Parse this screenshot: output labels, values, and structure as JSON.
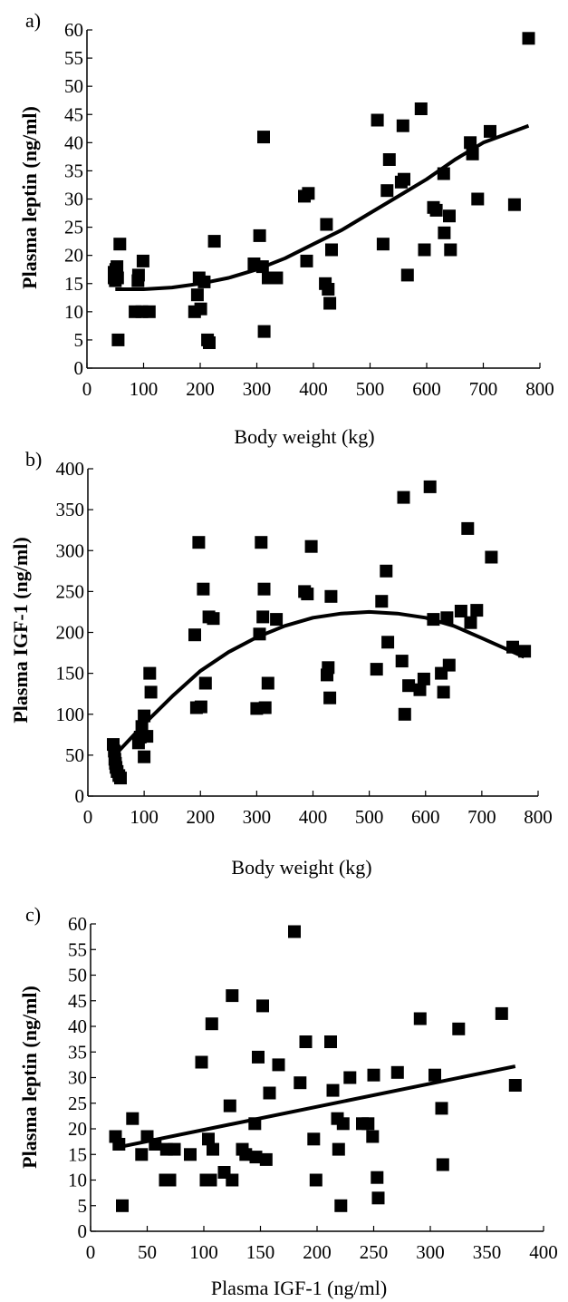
{
  "chart_data": [
    {
      "type": "scatter",
      "panel_label": "a)",
      "xlabel": "Body weight (kg)",
      "ylabel": "Plasma leptin (ng/ml)",
      "xlim": [
        0,
        800
      ],
      "ylim": [
        0,
        60
      ],
      "xticks": [
        "0",
        "100",
        "200",
        "300",
        "400",
        "500",
        "600",
        "700",
        "800"
      ],
      "yticks": [
        "0",
        "5",
        "10",
        "15",
        "20",
        "25",
        "30",
        "35",
        "40",
        "45",
        "50",
        "55",
        "60"
      ],
      "trendline": [
        [
          50,
          14
        ],
        [
          100,
          14
        ],
        [
          150,
          14.3
        ],
        [
          200,
          15
        ],
        [
          250,
          16
        ],
        [
          300,
          17.5
        ],
        [
          350,
          19.5
        ],
        [
          400,
          22
        ],
        [
          450,
          24.5
        ],
        [
          500,
          27.5
        ],
        [
          550,
          30.5
        ],
        [
          600,
          33.5
        ],
        [
          650,
          37
        ],
        [
          700,
          40
        ],
        [
          780,
          43
        ]
      ],
      "points": [
        [
          48,
          17
        ],
        [
          48,
          16
        ],
        [
          50,
          15.5
        ],
        [
          51,
          17.5
        ],
        [
          53,
          18
        ],
        [
          54,
          16
        ],
        [
          55,
          5
        ],
        [
          58,
          22
        ],
        [
          85,
          10
        ],
        [
          90,
          15.5
        ],
        [
          91,
          16.5
        ],
        [
          97,
          10
        ],
        [
          99,
          19
        ],
        [
          110,
          10
        ],
        [
          190,
          10
        ],
        [
          195,
          13
        ],
        [
          198,
          16
        ],
        [
          201,
          10.5
        ],
        [
          207,
          15.3
        ],
        [
          213,
          5
        ],
        [
          216,
          4.5
        ],
        [
          225,
          22.5
        ],
        [
          295,
          18.5
        ],
        [
          305,
          23.5
        ],
        [
          310,
          18
        ],
        [
          312,
          41
        ],
        [
          313,
          6.5
        ],
        [
          320,
          16
        ],
        [
          335,
          16
        ],
        [
          384,
          30.5
        ],
        [
          388,
          19
        ],
        [
          391,
          31
        ],
        [
          421,
          15
        ],
        [
          423,
          25.5
        ],
        [
          426,
          14
        ],
        [
          429,
          11.5
        ],
        [
          432,
          21
        ],
        [
          513,
          44
        ],
        [
          523,
          22
        ],
        [
          530,
          31.5
        ],
        [
          534,
          37
        ],
        [
          555,
          33
        ],
        [
          558,
          43
        ],
        [
          560,
          33.5
        ],
        [
          566,
          16.5
        ],
        [
          590,
          46
        ],
        [
          596,
          21
        ],
        [
          612,
          28.5
        ],
        [
          617,
          28
        ],
        [
          630,
          34.5
        ],
        [
          631,
          24
        ],
        [
          640,
          27
        ],
        [
          642,
          21
        ],
        [
          677,
          40
        ],
        [
          681,
          38
        ],
        [
          690,
          30
        ],
        [
          712,
          42
        ],
        [
          755,
          29
        ],
        [
          780,
          58.5
        ]
      ]
    },
    {
      "type": "scatter",
      "panel_label": "b)",
      "xlabel": "Body weight (kg)",
      "ylabel": "Plasma IGF-1 (ng/ml)",
      "xlim": [
        0,
        800
      ],
      "ylim": [
        0,
        400
      ],
      "xticks": [
        "0",
        "100",
        "200",
        "300",
        "400",
        "500",
        "600",
        "700",
        "800"
      ],
      "yticks": [
        "0",
        "50",
        "100",
        "150",
        "200",
        "250",
        "300",
        "350",
        "400"
      ],
      "trendline": [
        [
          48,
          50
        ],
        [
          100,
          88
        ],
        [
          150,
          122
        ],
        [
          200,
          153
        ],
        [
          250,
          176
        ],
        [
          300,
          194
        ],
        [
          350,
          208
        ],
        [
          400,
          218
        ],
        [
          450,
          223
        ],
        [
          500,
          225
        ],
        [
          550,
          223
        ],
        [
          600,
          218
        ],
        [
          650,
          208
        ],
        [
          700,
          193
        ],
        [
          775,
          170
        ]
      ],
      "points": [
        [
          45,
          63
        ],
        [
          47,
          55
        ],
        [
          48,
          45
        ],
        [
          49,
          40
        ],
        [
          50,
          35
        ],
        [
          52,
          30
        ],
        [
          55,
          25
        ],
        [
          58,
          22
        ],
        [
          90,
          65
        ],
        [
          93,
          72
        ],
        [
          96,
          85
        ],
        [
          100,
          98
        ],
        [
          100,
          48
        ],
        [
          105,
          73
        ],
        [
          110,
          150
        ],
        [
          112,
          127
        ],
        [
          190,
          197
        ],
        [
          193,
          108
        ],
        [
          197,
          310
        ],
        [
          201,
          109
        ],
        [
          205,
          253
        ],
        [
          209,
          138
        ],
        [
          215,
          219
        ],
        [
          223,
          217
        ],
        [
          300,
          107
        ],
        [
          305,
          198
        ],
        [
          308,
          310
        ],
        [
          311,
          219
        ],
        [
          313,
          253
        ],
        [
          315,
          108
        ],
        [
          320,
          138
        ],
        [
          335,
          216
        ],
        [
          385,
          250
        ],
        [
          390,
          247
        ],
        [
          397,
          305
        ],
        [
          425,
          148
        ],
        [
          427,
          157
        ],
        [
          430,
          120
        ],
        [
          432,
          244
        ],
        [
          513,
          155
        ],
        [
          522,
          238
        ],
        [
          530,
          275
        ],
        [
          533,
          188
        ],
        [
          558,
          165
        ],
        [
          561,
          365
        ],
        [
          563,
          100
        ],
        [
          570,
          135
        ],
        [
          590,
          130
        ],
        [
          597,
          143
        ],
        [
          608,
          378
        ],
        [
          614,
          216
        ],
        [
          628,
          150
        ],
        [
          632,
          127
        ],
        [
          638,
          218
        ],
        [
          642,
          160
        ],
        [
          663,
          226
        ],
        [
          675,
          327
        ],
        [
          680,
          212
        ],
        [
          691,
          227
        ],
        [
          717,
          292
        ],
        [
          755,
          182
        ],
        [
          776,
          177
        ]
      ]
    },
    {
      "type": "scatter",
      "panel_label": "c)",
      "xlabel": "Plasma IGF-1 (ng/ml)",
      "ylabel": "Plasma leptin (ng/ml)",
      "xlim": [
        0,
        400
      ],
      "ylim": [
        0,
        60
      ],
      "xticks": [
        "0",
        "50",
        "100",
        "150",
        "200",
        "250",
        "300",
        "350",
        "400"
      ],
      "yticks": [
        "0",
        "5",
        "10",
        "15",
        "20",
        "25",
        "30",
        "35",
        "40",
        "45",
        "50",
        "55",
        "60"
      ],
      "trendline": [
        [
          22,
          16.3
        ],
        [
          375,
          32.2
        ]
      ],
      "points": [
        [
          22,
          18.5
        ],
        [
          25,
          17
        ],
        [
          28,
          5
        ],
        [
          37,
          22
        ],
        [
          45,
          15
        ],
        [
          50,
          18.5
        ],
        [
          57,
          17
        ],
        [
          66,
          10
        ],
        [
          67,
          16
        ],
        [
          70,
          10
        ],
        [
          74,
          16
        ],
        [
          88,
          15
        ],
        [
          98,
          33
        ],
        [
          102,
          10
        ],
        [
          104,
          18
        ],
        [
          106,
          10
        ],
        [
          107,
          40.5
        ],
        [
          108,
          16
        ],
        [
          118,
          11.5
        ],
        [
          123,
          24.5
        ],
        [
          125,
          46
        ],
        [
          125,
          10
        ],
        [
          134,
          16
        ],
        [
          137,
          15
        ],
        [
          145,
          21
        ],
        [
          146,
          14.5
        ],
        [
          148,
          34
        ],
        [
          152,
          44
        ],
        [
          155,
          14
        ],
        [
          158,
          27
        ],
        [
          166,
          32.5
        ],
        [
          180,
          58.5
        ],
        [
          185,
          29
        ],
        [
          190,
          37
        ],
        [
          197,
          18
        ],
        [
          199,
          10
        ],
        [
          212,
          37
        ],
        [
          214,
          27.5
        ],
        [
          218,
          22
        ],
        [
          219,
          16
        ],
        [
          221,
          5
        ],
        [
          223,
          21
        ],
        [
          229,
          30
        ],
        [
          240,
          21
        ],
        [
          245,
          21
        ],
        [
          249,
          18.5
        ],
        [
          250,
          30.5
        ],
        [
          253,
          10.5
        ],
        [
          254,
          6.5
        ],
        [
          271,
          31
        ],
        [
          291,
          41.5
        ],
        [
          304,
          30.5
        ],
        [
          310,
          24
        ],
        [
          311,
          13
        ],
        [
          325,
          39.5
        ],
        [
          363,
          42.5
        ],
        [
          375,
          28.5
        ]
      ]
    }
  ]
}
